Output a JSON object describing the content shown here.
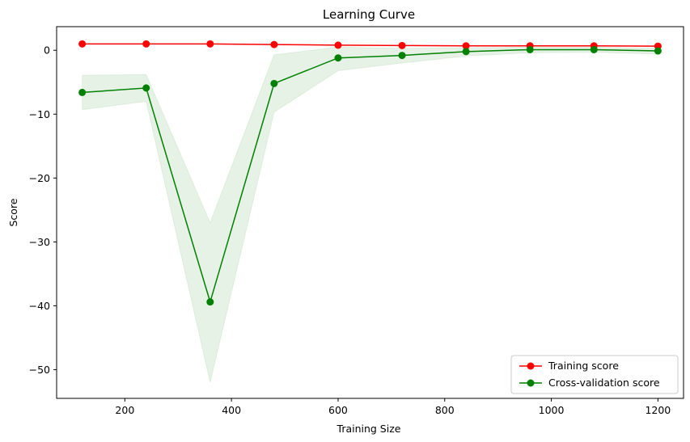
{
  "chart_data": {
    "type": "line",
    "title": "Learning Curve",
    "xlabel": "Training Size",
    "ylabel": "Score",
    "xlim": [
      72,
      1248
    ],
    "ylim": [
      -54.5,
      3.7
    ],
    "xticks": [
      200,
      400,
      600,
      800,
      1000,
      1200
    ],
    "yticks": [
      0,
      -10,
      -20,
      -30,
      -40,
      -50
    ],
    "grid": false,
    "legend_position": "lower-right",
    "x": [
      120,
      240,
      360,
      480,
      600,
      720,
      840,
      960,
      1080,
      1200
    ],
    "series": [
      {
        "name": "Training score",
        "color": "#ff0000",
        "values": [
          1.0,
          1.0,
          1.0,
          0.9,
          0.8,
          0.75,
          0.7,
          0.7,
          0.7,
          0.65
        ],
        "band_lower": [
          1.0,
          1.0,
          1.0,
          0.9,
          0.8,
          0.75,
          0.7,
          0.7,
          0.7,
          0.65
        ],
        "band_upper": [
          1.0,
          1.0,
          1.0,
          0.9,
          0.8,
          0.75,
          0.7,
          0.7,
          0.7,
          0.65
        ],
        "band_color": "#ff0000"
      },
      {
        "name": "Cross-validation score",
        "color": "#008000",
        "values": [
          -6.6,
          -5.9,
          -39.4,
          -5.2,
          -1.2,
          -0.8,
          -0.2,
          0.1,
          0.1,
          -0.1
        ],
        "band_lower": [
          -9.3,
          -8.0,
          -52.0,
          -9.7,
          -3.2,
          -2.0,
          -0.9,
          -0.4,
          -0.3,
          -0.6
        ],
        "band_upper": [
          -3.9,
          -3.8,
          -27.0,
          -0.7,
          0.5,
          0.3,
          0.4,
          0.5,
          0.5,
          0.3
        ],
        "band_color": "#008000"
      }
    ]
  }
}
